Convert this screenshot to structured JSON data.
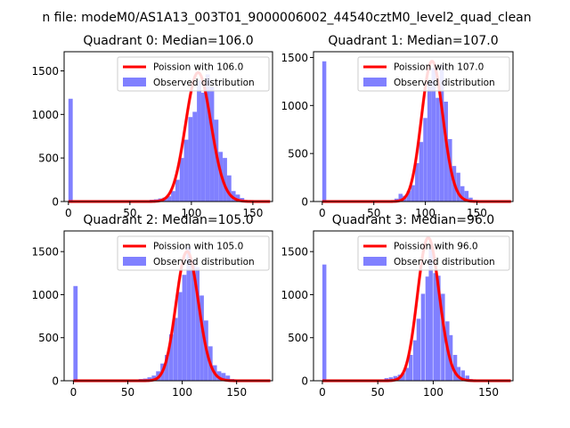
{
  "figure": {
    "suptitle": "n file: modeM0/AS1A13_003T01_9000006002_44540cztM0_level2_quad_clean"
  },
  "chart_data": [
    {
      "type": "bar",
      "title": "Quadrant 0: Median=106.0",
      "xlim": [
        -3.5,
        166
      ],
      "ylim": [
        0,
        1720
      ],
      "xticks": [
        0,
        50,
        100,
        150
      ],
      "yticks": [
        0,
        500,
        1000,
        1500
      ],
      "bin_width": 3.5,
      "legend": [
        "Poission with 106.0",
        "Observed distribution"
      ],
      "legend_position": "upper right",
      "poisson_mean": 106.0,
      "poisson_peak": 1480,
      "hist_color": "#8080ff",
      "poisson_color": "#ff0000",
      "hist_x": [
        0,
        66,
        69.5,
        73,
        76.5,
        80,
        83.5,
        87,
        90.5,
        94,
        97.5,
        101,
        104.5,
        108,
        111.5,
        115,
        118.5,
        122,
        125.5,
        129,
        132.5,
        136,
        139.5,
        143
      ],
      "hist_y": [
        1180,
        20,
        25,
        35,
        45,
        60,
        120,
        250,
        500,
        710,
        970,
        1030,
        1390,
        1250,
        1460,
        1320,
        940,
        570,
        500,
        300,
        120,
        80,
        40,
        10
      ]
    },
    {
      "type": "bar",
      "title": "Quadrant 1: Median=107.0",
      "xlim": [
        -8.5,
        185
      ],
      "ylim": [
        0,
        1560
      ],
      "xticks": [
        0,
        50,
        100,
        150
      ],
      "yticks": [
        0,
        500,
        1000,
        1500
      ],
      "bin_width": 3.9,
      "legend": [
        "Poission with 107.0",
        "Observed distribution"
      ],
      "legend_position": "upper right",
      "poisson_mean": 107.0,
      "poisson_peak": 1460,
      "hist_color": "#8080ff",
      "poisson_color": "#ff0000",
      "hist_x": [
        0,
        70,
        74,
        78,
        82,
        86,
        90,
        94,
        98,
        102,
        106,
        110,
        114,
        118,
        122,
        126,
        130,
        134,
        138,
        142,
        146
      ],
      "hist_y": [
        1460,
        30,
        80,
        60,
        110,
        170,
        400,
        620,
        870,
        1260,
        1390,
        1080,
        1420,
        1040,
        650,
        370,
        300,
        160,
        110,
        40,
        15
      ]
    },
    {
      "type": "bar",
      "title": "Quadrant 2: Median=105.0",
      "xlim": [
        -8.5,
        183
      ],
      "ylim": [
        0,
        1740
      ],
      "xticks": [
        0,
        50,
        100,
        150
      ],
      "yticks": [
        0,
        500,
        1000,
        1500
      ],
      "bin_width": 3.9,
      "legend": [
        "Poission with 105.0",
        "Observed distribution"
      ],
      "legend_position": "upper right",
      "poisson_mean": 105.0,
      "poisson_peak": 1500,
      "hist_color": "#8080ff",
      "poisson_color": "#ff0000",
      "hist_x": [
        0,
        60,
        64,
        68,
        72,
        76,
        80,
        84,
        88,
        92,
        96,
        100,
        104,
        108,
        112,
        116,
        120,
        124,
        128,
        132,
        136,
        140,
        144
      ],
      "hist_y": [
        1100,
        20,
        25,
        40,
        60,
        110,
        200,
        300,
        540,
        730,
        1030,
        1230,
        1560,
        1400,
        1320,
        990,
        700,
        400,
        180,
        110,
        90,
        60,
        20
      ]
    },
    {
      "type": "bar",
      "title": "Quadrant 3: Median=96.0",
      "xlim": [
        -8,
        172
      ],
      "ylim": [
        0,
        1740
      ],
      "xticks": [
        0,
        50,
        100,
        150
      ],
      "yticks": [
        0,
        500,
        1000,
        1500
      ],
      "bin_width": 3.6,
      "legend": [
        "Poission with 96.0",
        "Observed distribution"
      ],
      "legend_position": "upper right",
      "poisson_mean": 96.0,
      "poisson_peak": 1660,
      "hist_color": "#8080ff",
      "poisson_color": "#ff0000",
      "hist_x": [
        0,
        56,
        60,
        64,
        68,
        71,
        75,
        78,
        82,
        85,
        89,
        93,
        96,
        100,
        103,
        107,
        111,
        114,
        118,
        121,
        125,
        129,
        132
      ],
      "hist_y": [
        1350,
        30,
        40,
        55,
        70,
        90,
        150,
        300,
        470,
        720,
        1010,
        1210,
        1550,
        1250,
        1220,
        1010,
        690,
        530,
        300,
        160,
        120,
        60,
        20
      ]
    }
  ]
}
